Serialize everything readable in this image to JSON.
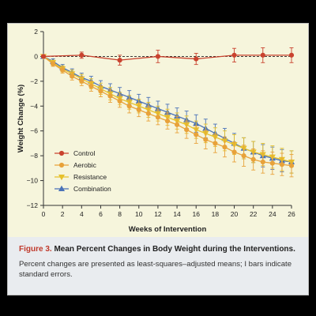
{
  "caption": {
    "label": "Figure 3.",
    "title": "Mean Percent Changes in Body Weight during the Interventions.",
    "body": "Percent changes are presented as least-squares–adjusted means; I bars indicate standard errors."
  },
  "chart_data": {
    "type": "line",
    "xlabel": "Weeks of Intervention",
    "ylabel": "Weight Change (%)",
    "xlim": [
      0,
      26
    ],
    "ylim": [
      -12,
      2
    ],
    "xticks": [
      0,
      2,
      4,
      6,
      8,
      10,
      12,
      14,
      16,
      18,
      20,
      22,
      24,
      26
    ],
    "yticks": [
      2,
      0,
      -2,
      -4,
      -6,
      -8,
      -10,
      -12
    ],
    "reference_line": 0,
    "legend_position": "lower-left",
    "series": [
      {
        "name": "Control",
        "color": "#c9432f",
        "marker": "circle",
        "x": [
          0,
          4,
          8,
          12,
          16,
          20,
          23,
          26
        ],
        "values": [
          0,
          0.1,
          -0.3,
          0.0,
          -0.2,
          0.1,
          0.1,
          0.1
        ],
        "errors": [
          0,
          0.25,
          0.4,
          0.5,
          0.45,
          0.55,
          0.6,
          0.6
        ]
      },
      {
        "name": "Aerobic",
        "color": "#e8a23a",
        "marker": "circle",
        "x": [
          0,
          1,
          2,
          3,
          4,
          5,
          6,
          7,
          8,
          9,
          10,
          11,
          12,
          13,
          14,
          15,
          16,
          17,
          18,
          19,
          20,
          21,
          22,
          23,
          24,
          25,
          26
        ],
        "values": [
          0,
          -0.6,
          -1.1,
          -1.6,
          -2.0,
          -2.4,
          -2.8,
          -3.2,
          -3.6,
          -4.0,
          -4.3,
          -4.6,
          -4.9,
          -5.2,
          -5.5,
          -5.9,
          -6.3,
          -6.7,
          -7.0,
          -7.3,
          -7.7,
          -8.0,
          -8.3,
          -8.5,
          -8.6,
          -8.7,
          -8.8
        ],
        "errors": [
          0,
          0.2,
          0.25,
          0.3,
          0.35,
          0.4,
          0.45,
          0.5,
          0.5,
          0.55,
          0.55,
          0.6,
          0.6,
          0.65,
          0.65,
          0.7,
          0.7,
          0.75,
          0.75,
          0.8,
          0.8,
          0.85,
          0.85,
          0.9,
          0.9,
          0.9,
          0.9
        ]
      },
      {
        "name": "Resistance",
        "color": "#e6c12c",
        "marker": "triangle-down",
        "x": [
          0,
          1,
          2,
          3,
          4,
          5,
          6,
          7,
          8,
          9,
          10,
          11,
          12,
          13,
          14,
          15,
          16,
          17,
          18,
          19,
          20,
          21,
          22,
          23,
          24,
          25,
          26
        ],
        "values": [
          0,
          -0.5,
          -1.0,
          -1.4,
          -1.8,
          -2.2,
          -2.6,
          -3.0,
          -3.4,
          -3.7,
          -4.0,
          -4.3,
          -4.6,
          -4.9,
          -5.2,
          -5.5,
          -5.9,
          -6.2,
          -6.5,
          -6.8,
          -7.1,
          -7.4,
          -7.7,
          -7.9,
          -8.1,
          -8.3,
          -8.5
        ],
        "errors": [
          0,
          0.2,
          0.25,
          0.3,
          0.35,
          0.4,
          0.45,
          0.5,
          0.5,
          0.55,
          0.55,
          0.6,
          0.6,
          0.65,
          0.65,
          0.7,
          0.7,
          0.75,
          0.75,
          0.8,
          0.8,
          0.85,
          0.85,
          0.9,
          0.9,
          0.9,
          0.9
        ]
      },
      {
        "name": "Combination",
        "color": "#4a72b8",
        "marker": "triangle-up",
        "x": [
          0,
          1,
          2,
          3,
          4,
          5,
          6,
          7,
          8,
          9,
          10,
          11,
          12,
          13,
          14,
          15,
          16,
          17,
          18,
          19,
          20,
          21,
          22,
          23,
          24,
          25,
          26
        ],
        "values": [
          0,
          -0.4,
          -0.9,
          -1.3,
          -1.7,
          -2.0,
          -2.4,
          -2.7,
          -3.0,
          -3.3,
          -3.6,
          -3.9,
          -4.2,
          -4.5,
          -4.8,
          -5.1,
          -5.4,
          -5.8,
          -6.2,
          -6.6,
          -7.0,
          -7.4,
          -7.7,
          -8.0,
          -8.2,
          -8.4,
          -8.5
        ],
        "errors": [
          0,
          0.2,
          0.25,
          0.3,
          0.35,
          0.4,
          0.45,
          0.5,
          0.5,
          0.55,
          0.55,
          0.6,
          0.6,
          0.65,
          0.65,
          0.7,
          0.7,
          0.75,
          0.75,
          0.8,
          0.8,
          0.85,
          0.85,
          0.9,
          0.9,
          0.9,
          0.9
        ]
      }
    ]
  }
}
